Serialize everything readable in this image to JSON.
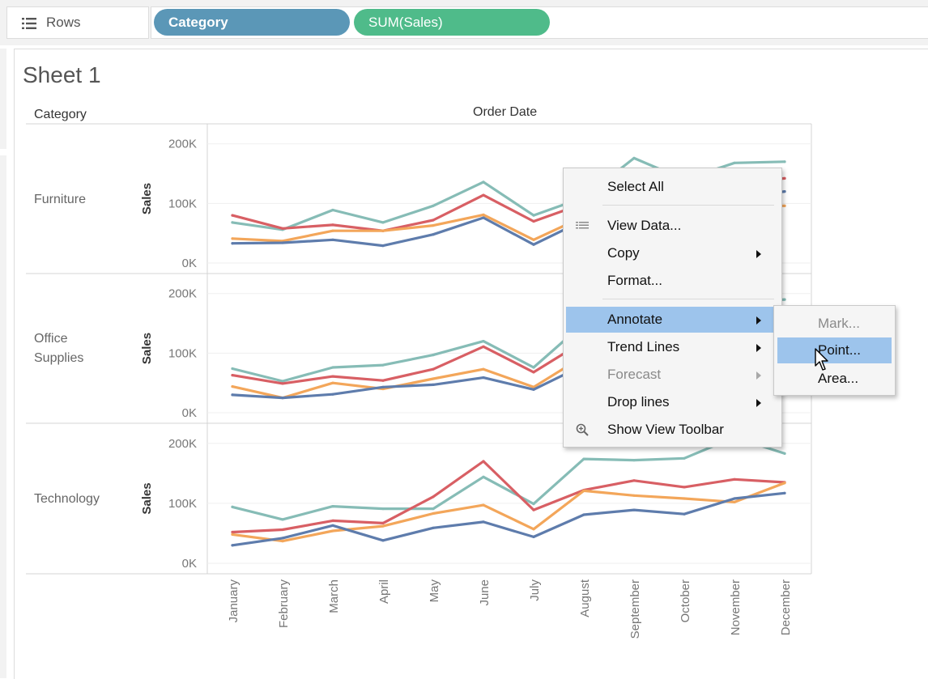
{
  "shelf": {
    "label": "Rows",
    "pills": [
      {
        "label": "Category",
        "kind": "dimension",
        "color": "#5b97b7"
      },
      {
        "label": "SUM(Sales)",
        "kind": "measure",
        "color": "#4fbb8a"
      }
    ]
  },
  "sheet": {
    "title": "Sheet 1",
    "row_header": "Category",
    "column_header": "Order Date"
  },
  "chart_data": {
    "type": "line",
    "x_label": "Order Date",
    "categories": [
      "January",
      "February",
      "March",
      "April",
      "May",
      "June",
      "July",
      "August",
      "September",
      "October",
      "November",
      "December"
    ],
    "y_axis_label": "Sales",
    "y_ticks": [
      "0K",
      "100K",
      "200K"
    ],
    "ylim": [
      0,
      220000
    ],
    "grid": true,
    "series_colors": [
      "#86bcb6",
      "#d85f64",
      "#f3a65a",
      "#5e7cac"
    ],
    "panes": [
      {
        "label": "Furniture",
        "series": [
          {
            "color": "#86bcb6",
            "values": [
              68000,
              56000,
              89000,
              68000,
              96000,
              136000,
              80000,
              110000,
              176000,
              140000,
              168000,
              170000
            ]
          },
          {
            "color": "#d85f64",
            "values": [
              80000,
              58000,
              64000,
              54000,
              72000,
              114000,
              70000,
              100000,
              130000,
              125000,
              135000,
              142000
            ]
          },
          {
            "color": "#f3a65a",
            "values": [
              41000,
              37000,
              54000,
              54000,
              63000,
              81000,
              39000,
              78000,
              105000,
              98000,
              95000,
              96000
            ]
          },
          {
            "color": "#5e7cac",
            "values": [
              33000,
              34000,
              39000,
              29000,
              48000,
              76000,
              31000,
              72000,
              98000,
              94000,
              110000,
              120000
            ]
          }
        ]
      },
      {
        "label": "Office\nSupplies",
        "series": [
          {
            "color": "#86bcb6",
            "values": [
              74000,
              53000,
              76000,
              80000,
              97000,
              120000,
              76000,
              150000,
              170000,
              165000,
              185000,
              190000
            ]
          },
          {
            "color": "#d85f64",
            "values": [
              63000,
              49000,
              61000,
              54000,
              73000,
              111000,
              68000,
              120000,
              145000,
              140000,
              150000,
              155000
            ]
          },
          {
            "color": "#f3a65a",
            "values": [
              44000,
              25000,
              50000,
              40000,
              57000,
              73000,
              43000,
              95000,
              110000,
              105000,
              115000,
              125000
            ]
          },
          {
            "color": "#5e7cac",
            "values": [
              30000,
              25000,
              31000,
              43000,
              47000,
              59000,
              39000,
              80000,
              95000,
              92000,
              100000,
              110000
            ]
          }
        ]
      },
      {
        "label": "Technology",
        "series": [
          {
            "color": "#86bcb6",
            "values": [
              94000,
              73000,
              95000,
              91000,
              91000,
              144000,
              99000,
              174000,
              172000,
              175000,
              210000,
              183000
            ]
          },
          {
            "color": "#d85f64",
            "values": [
              52000,
              56000,
              71000,
              67000,
              111000,
              170000,
              89000,
              122000,
              138000,
              127000,
              140000,
              135000
            ]
          },
          {
            "color": "#f3a65a",
            "values": [
              48000,
              37000,
              54000,
              62000,
              83000,
              97000,
              57000,
              121000,
              113000,
              108000,
              102000,
              134000
            ]
          },
          {
            "color": "#5e7cac",
            "values": [
              30000,
              42000,
              63000,
              38000,
              59000,
              69000,
              44000,
              81000,
              89000,
              82000,
              108000,
              117000
            ]
          }
        ]
      }
    ]
  },
  "context_menu": {
    "items": [
      {
        "label": "Select All",
        "disabled": false,
        "submenu": false,
        "highlight": false
      },
      {
        "label": "View Data...",
        "disabled": false,
        "submenu": false,
        "highlight": false,
        "icon": "table-icon"
      },
      {
        "label": "Copy",
        "disabled": false,
        "submenu": true,
        "highlight": false
      },
      {
        "label": "Format...",
        "disabled": false,
        "submenu": false,
        "highlight": false
      },
      {
        "label": "Annotate",
        "disabled": false,
        "submenu": true,
        "highlight": true
      },
      {
        "label": "Trend Lines",
        "disabled": false,
        "submenu": true,
        "highlight": false
      },
      {
        "label": "Forecast",
        "disabled": true,
        "submenu": true,
        "highlight": false
      },
      {
        "label": "Drop lines",
        "disabled": false,
        "submenu": true,
        "highlight": false
      },
      {
        "label": "Show View Toolbar",
        "disabled": false,
        "submenu": false,
        "highlight": false,
        "icon": "zoom-icon"
      }
    ]
  },
  "annotate_submenu": {
    "items": [
      {
        "label": "Mark...",
        "disabled": true,
        "highlight": false
      },
      {
        "label": "Point...",
        "disabled": false,
        "highlight": true
      },
      {
        "label": "Area...",
        "disabled": false,
        "highlight": false
      }
    ]
  }
}
